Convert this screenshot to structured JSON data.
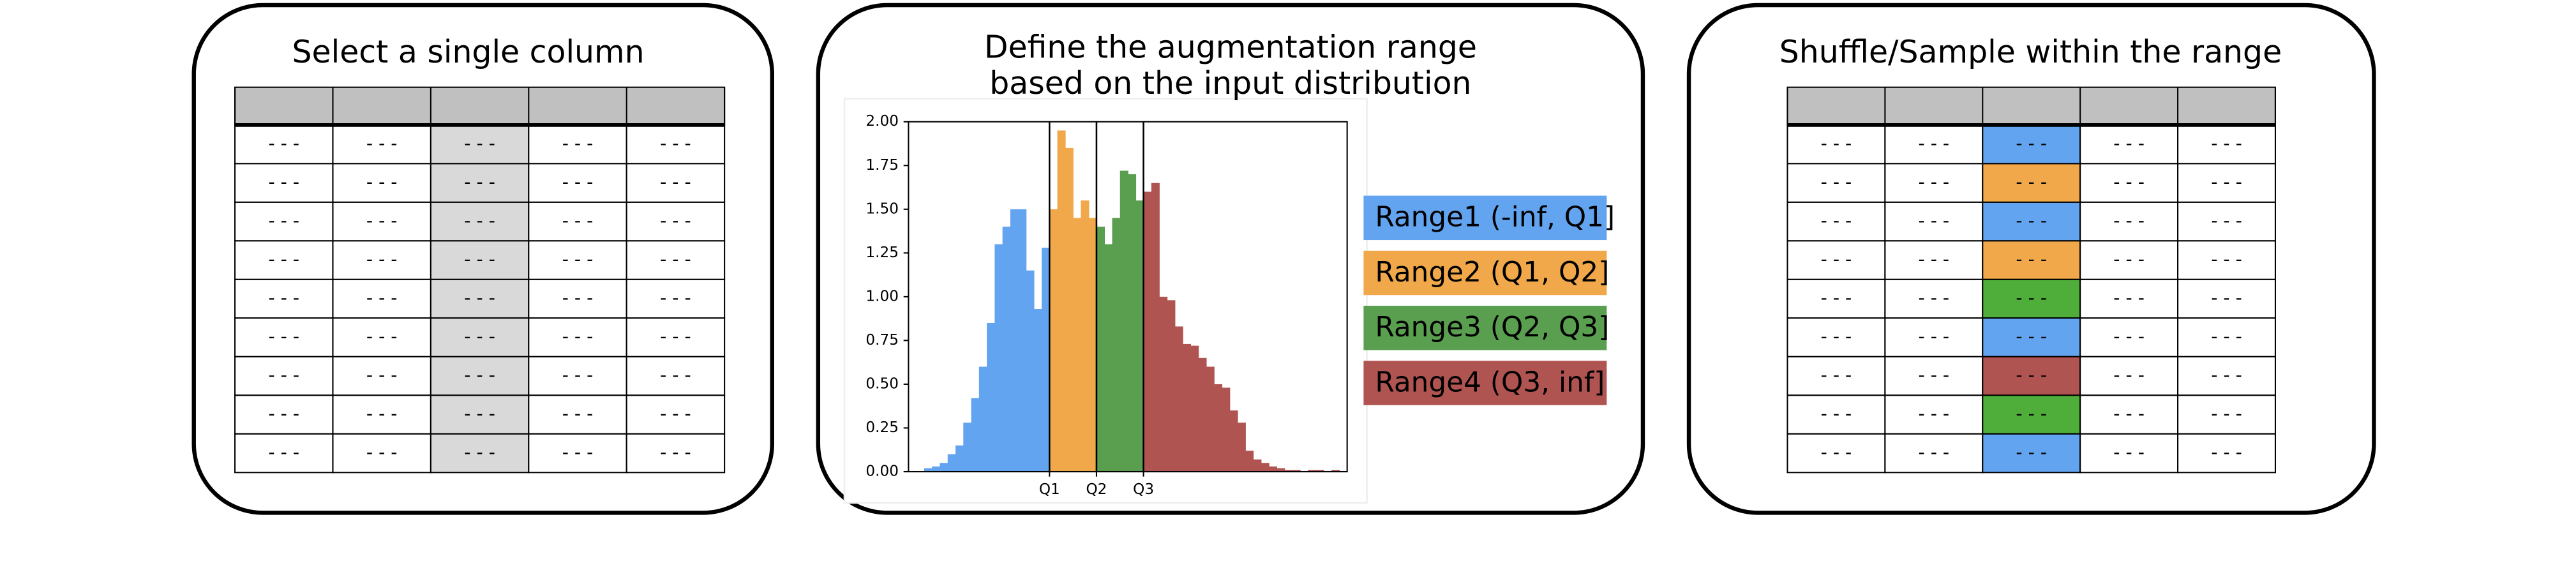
{
  "panels": [
    {
      "title": "Select a single column",
      "highlight_column": 2,
      "header_color": "#c0c0c0",
      "column_colors": [
        "#d9d9d9",
        "#d9d9d9",
        "#d9d9d9",
        "#d9d9d9",
        "#d9d9d9",
        "#d9d9d9",
        "#d9d9d9",
        "#d9d9d9",
        "#d9d9d9"
      ],
      "rows": [
        [
          "- - -",
          "- - -",
          "- - -",
          "- - -",
          "- - -"
        ],
        [
          "- - -",
          "- - -",
          "- - -",
          "- - -",
          "- - -"
        ],
        [
          "- - -",
          "- - -",
          "- - -",
          "- - -",
          "- - -"
        ],
        [
          "- - -",
          "- - -",
          "- - -",
          "- - -",
          "- - -"
        ],
        [
          "- - -",
          "- - -",
          "- - -",
          "- - -",
          "- - -"
        ],
        [
          "- - -",
          "- - -",
          "- - -",
          "- - -",
          "- - -"
        ],
        [
          "- - -",
          "- - -",
          "- - -",
          "- - -",
          "- - -"
        ],
        [
          "- - -",
          "- - -",
          "- - -",
          "- - -",
          "- - -"
        ],
        [
          "- - -",
          "- - -",
          "- - -",
          "- - -",
          "- - -"
        ]
      ]
    },
    {
      "title": "Shuffle/Sample within the range",
      "highlight_column": 2,
      "header_color": "#c0c0c0",
      "column_colors": [
        "#62a4ef",
        "#f0a84a",
        "#62a4ef",
        "#f0a84a",
        "#4fad3a",
        "#62a4ef",
        "#b05452",
        "#4fad3a",
        "#62a4ef"
      ],
      "rows": [
        [
          "- - -",
          "- - -",
          "- - -",
          "- - -",
          "- - -"
        ],
        [
          "- - -",
          "- - -",
          "- - -",
          "- - -",
          "- - -"
        ],
        [
          "- - -",
          "- - -",
          "- - -",
          "- - -",
          "- - -"
        ],
        [
          "- - -",
          "- - -",
          "- - -",
          "- - -",
          "- - -"
        ],
        [
          "- - -",
          "- - -",
          "- - -",
          "- - -",
          "- - -"
        ],
        [
          "- - -",
          "- - -",
          "- - -",
          "- - -",
          "- - -"
        ],
        [
          "- - -",
          "- - -",
          "- - -",
          "- - -",
          "- - -"
        ],
        [
          "- - -",
          "- - -",
          "- - -",
          "- - -",
          "- - -"
        ],
        [
          "- - -",
          "- - -",
          "- - -",
          "- - -",
          "- - -"
        ]
      ]
    }
  ],
  "chart_data": {
    "type": "histogram",
    "title": [
      "Define the augmentation range",
      "based on the input distribution"
    ],
    "bins": [
      0,
      1,
      2,
      3,
      4,
      5,
      6,
      7,
      8,
      9,
      10,
      11,
      12,
      13,
      14,
      15,
      16,
      17,
      18,
      19,
      20,
      21,
      22,
      23,
      24,
      25,
      26,
      27,
      28,
      29,
      30,
      31,
      32,
      33,
      34,
      35,
      36,
      37,
      38,
      39,
      40,
      41,
      42,
      43,
      44,
      45,
      46,
      47,
      48,
      49,
      50,
      51,
      52,
      53,
      54,
      55,
      56
    ],
    "values": [
      0,
      0,
      0.02,
      0.03,
      0.05,
      0.1,
      0.15,
      0.28,
      0.42,
      0.6,
      0.85,
      1.3,
      1.4,
      1.5,
      1.5,
      1.15,
      0.93,
      1.28,
      1.5,
      1.95,
      1.85,
      1.45,
      1.55,
      1.45,
      1.4,
      1.3,
      1.45,
      1.72,
      1.7,
      1.55,
      1.6,
      1.65,
      1.0,
      0.98,
      0.83,
      0.73,
      0.72,
      0.65,
      0.6,
      0.5,
      0.48,
      0.35,
      0.28,
      0.12,
      0.07,
      0.05,
      0.03,
      0.02,
      0.01,
      0.01,
      0,
      0.01,
      0.01,
      0,
      0.01,
      0
    ],
    "xlim": [
      0,
      56
    ],
    "ylim": [
      0,
      2
    ],
    "xticks": [
      {
        "value": 18,
        "label": "Q1"
      },
      {
        "value": 24,
        "label": "Q2"
      },
      {
        "value": 30,
        "label": "Q3"
      }
    ],
    "yticks": [
      {
        "value": 0,
        "label": "0.00"
      },
      {
        "value": 0.25,
        "label": "0.25"
      },
      {
        "value": 0.5,
        "label": "0.50"
      },
      {
        "value": 0.75,
        "label": "0.75"
      },
      {
        "value": 1,
        "label": "1.00"
      },
      {
        "value": 1.25,
        "label": "1.25"
      },
      {
        "value": 1.5,
        "label": "1.50"
      },
      {
        "value": 1.75,
        "label": "1.75"
      },
      {
        "value": 2,
        "label": "2.00"
      }
    ],
    "series": [
      {
        "name": "Range1 (-inf, Q1]",
        "color": "#62a4ef"
      },
      {
        "name": "Range2 (Q1, Q2]",
        "color": "#f0a84a"
      },
      {
        "name": "Range3 (Q2, Q3]",
        "color": "#5a9e4f"
      },
      {
        "name": "Range4 (Q3, inf]",
        "color": "#b05452"
      }
    ]
  }
}
